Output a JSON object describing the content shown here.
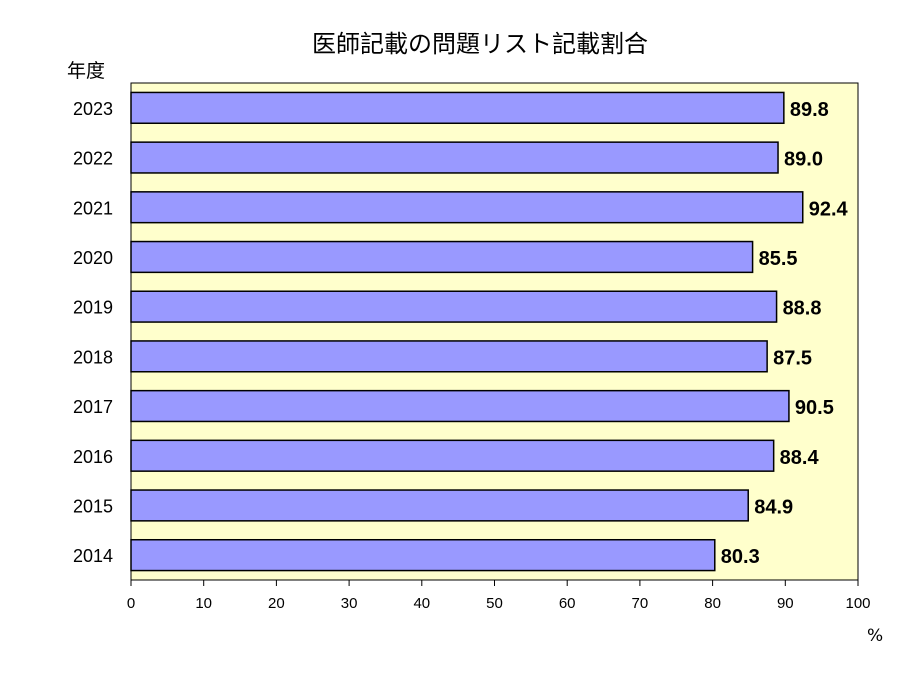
{
  "chart_data": {
    "type": "bar",
    "orientation": "horizontal",
    "title": "医師記載の問題リスト記載割合",
    "ylabel": "年度",
    "xunit": "%",
    "categories": [
      "2023",
      "2022",
      "2021",
      "2020",
      "2019",
      "2018",
      "2017",
      "2016",
      "2015",
      "2014"
    ],
    "values": [
      89.8,
      89.0,
      92.4,
      85.5,
      88.8,
      87.5,
      90.5,
      88.4,
      84.9,
      80.3
    ],
    "value_labels": [
      "89.8",
      "89.0",
      "92.4",
      "85.5",
      "88.8",
      "87.5",
      "90.5",
      "88.4",
      "84.9",
      "80.3"
    ],
    "xlim": [
      0,
      100
    ],
    "xticks": [
      "0",
      "10",
      "20",
      "30",
      "40",
      "50",
      "60",
      "70",
      "80",
      "90",
      "100"
    ],
    "grid": false,
    "legend": "none",
    "colors": {
      "bar": "#9999ff",
      "plot_background": "#ffffcc",
      "bar_border": "#000000"
    }
  }
}
